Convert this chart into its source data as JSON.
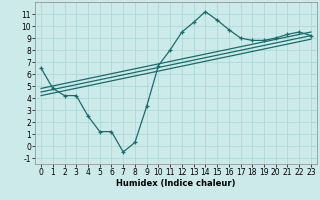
{
  "xlabel": "Humidex (Indice chaleur)",
  "ylabel": "",
  "bg_color": "#cdeaea",
  "grid_color": "#b0d8d8",
  "line_color": "#1a6b6b",
  "x_main": [
    0,
    1,
    2,
    3,
    4,
    5,
    6,
    7,
    8,
    9,
    10,
    11,
    12,
    13,
    14,
    15,
    16,
    17,
    18,
    19,
    20,
    21,
    22,
    23
  ],
  "y_main": [
    6.5,
    4.8,
    4.2,
    4.2,
    2.5,
    1.2,
    1.2,
    -0.5,
    0.3,
    3.3,
    6.7,
    8.0,
    9.5,
    10.3,
    11.2,
    10.5,
    9.7,
    9.0,
    8.8,
    8.8,
    9.0,
    9.3,
    9.5,
    9.2
  ],
  "straight_lines": [
    [
      4.8,
      9.5
    ],
    [
      4.5,
      9.2
    ],
    [
      4.2,
      8.9
    ]
  ],
  "ylim": [
    -1.5,
    12.0
  ],
  "xlim": [
    -0.5,
    23.5
  ],
  "yticks": [
    -1,
    0,
    1,
    2,
    3,
    4,
    5,
    6,
    7,
    8,
    9,
    10,
    11
  ],
  "xticks": [
    0,
    1,
    2,
    3,
    4,
    5,
    6,
    7,
    8,
    9,
    10,
    11,
    12,
    13,
    14,
    15,
    16,
    17,
    18,
    19,
    20,
    21,
    22,
    23
  ],
  "tick_fontsize": 5.5,
  "xlabel_fontsize": 6.0
}
